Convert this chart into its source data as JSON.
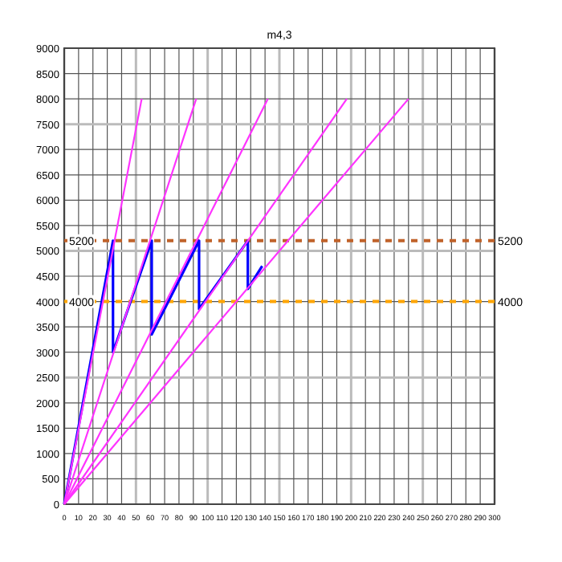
{
  "chart_data": {
    "type": "line",
    "title": "m4,3",
    "series": [
      {
        "color": "#0000ff",
        "x": [
          0,
          34,
          34,
          61,
          61,
          94,
          94,
          128,
          128,
          138
        ],
        "values": [
          0,
          5200,
          3000,
          5200,
          3350,
          5200,
          3850,
          5200,
          4250,
          4700
        ]
      },
      {
        "color": "#ff33ff",
        "x": [
          0,
          54
        ],
        "values": [
          0,
          8000
        ]
      },
      {
        "color": "#ff33ff",
        "x": [
          0,
          92
        ],
        "values": [
          0,
          8000
        ]
      },
      {
        "color": "#ff33ff",
        "x": [
          0,
          142
        ],
        "values": [
          0,
          8000
        ]
      },
      {
        "color": "#ff33ff",
        "x": [
          0,
          197
        ],
        "values": [
          0,
          8000
        ]
      },
      {
        "color": "#ff33ff",
        "x": [
          0,
          240
        ],
        "values": [
          0,
          8000
        ]
      }
    ],
    "xlim": [
      0,
      300
    ],
    "xticks": [
      0,
      10,
      20,
      30,
      40,
      50,
      60,
      70,
      80,
      90,
      100,
      110,
      120,
      130,
      140,
      150,
      160,
      170,
      180,
      190,
      200,
      210,
      220,
      230,
      240,
      250,
      260,
      270,
      280,
      290,
      300
    ],
    "ylim": [
      0,
      9000
    ],
    "yticks": [
      0,
      500,
      1000,
      1500,
      2000,
      2500,
      3000,
      3500,
      4000,
      4500,
      5000,
      5500,
      6000,
      6500,
      7000,
      7500,
      8000,
      8500,
      9000
    ],
    "ref_lines": [
      {
        "axis": "y",
        "value": 5200,
        "label": "5200",
        "color": "#c0622a",
        "line_style": "dashed"
      },
      {
        "axis": "y",
        "value": 4000,
        "label": "4000",
        "color": "#ffa500",
        "line_style": "dashed"
      }
    ],
    "grid": true,
    "marker": "none",
    "line_style": "solid"
  }
}
